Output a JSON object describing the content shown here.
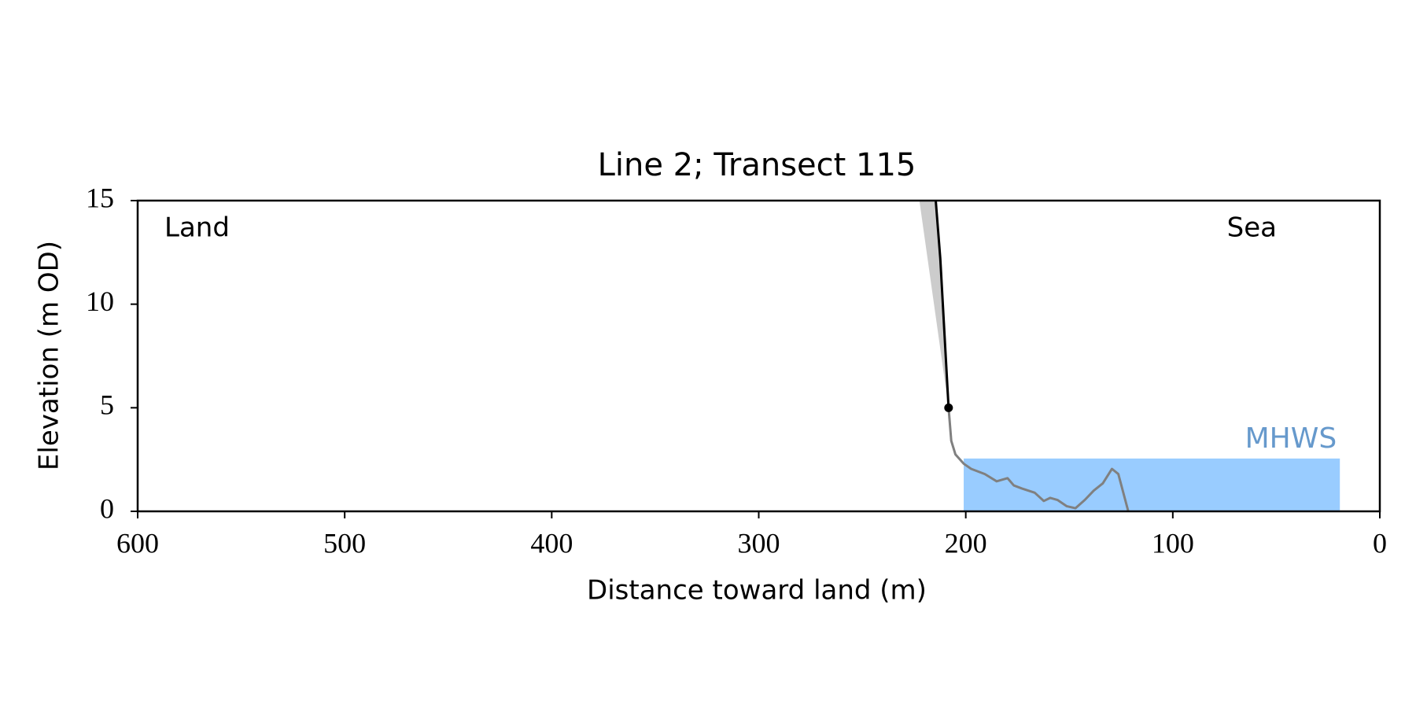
{
  "chart_data": {
    "type": "line",
    "title": "Line 2; Transect 115",
    "xlabel": "Distance toward land (m)",
    "ylabel": "Elevation (m OD)",
    "xlim": [
      600,
      0
    ],
    "ylim": [
      0,
      15
    ],
    "xticks": [
      600,
      500,
      400,
      300,
      200,
      100,
      0
    ],
    "yticks": [
      0,
      5,
      10,
      15
    ],
    "annotations": [
      "Land",
      "Sea"
    ],
    "band": {
      "label": "MHWS",
      "color": "#99ccff",
      "label_color": "#6699cc",
      "xlim": [
        201,
        19.3
      ],
      "value": 2.55
    },
    "fill": {
      "color": "#cccccc",
      "x": [
        222.4,
        214.5,
        208.3
      ],
      "values": [
        15,
        15,
        5
      ]
    },
    "series": [
      {
        "color": "#808080",
        "x": [
          208.3,
          207,
          205,
          201,
          197.4,
          190.8,
          185.1,
          179.8,
          176.8,
          172.8,
          166.7,
          162.3,
          159.2,
          155.7,
          151.3,
          147,
          142.5,
          138.2,
          133.8,
          129.4,
          126.3,
          121.5
        ],
        "values": [
          5,
          3.4,
          2.75,
          2.3,
          2.05,
          1.8,
          1.45,
          1.6,
          1.25,
          1.1,
          0.9,
          0.5,
          0.65,
          0.55,
          0.25,
          0.15,
          0.55,
          1.0,
          1.35,
          2.05,
          1.8,
          0
        ]
      },
      {
        "color": "#000000",
        "x": [
          214.5,
          212.3,
          208.3
        ],
        "values": [
          15,
          12.2,
          5
        ]
      }
    ],
    "points": {
      "color": "#000000",
      "x": [
        208.3
      ],
      "values": [
        5
      ]
    }
  }
}
